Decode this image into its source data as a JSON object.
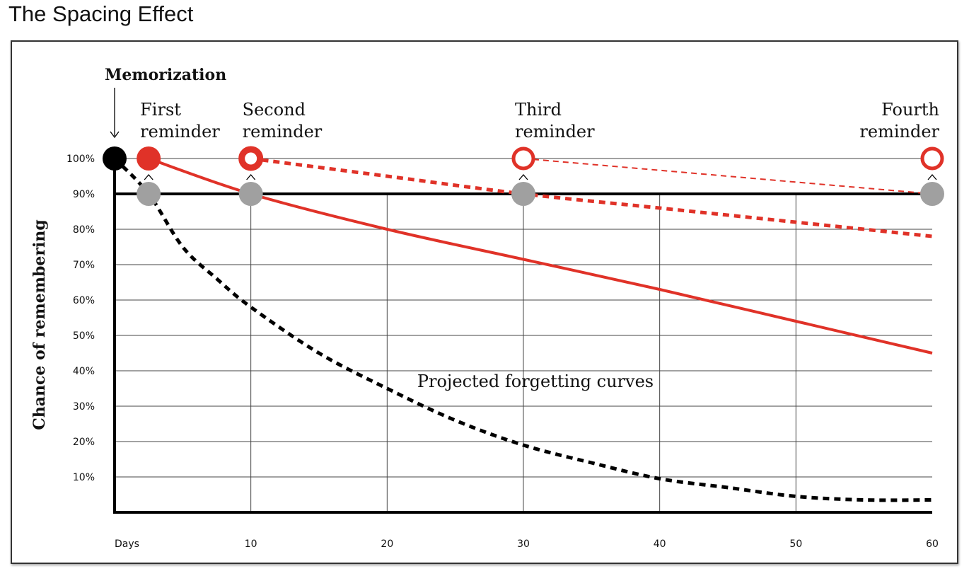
{
  "page": {
    "title": "The Spacing Effect"
  },
  "chart_data": {
    "type": "line",
    "title": "The Spacing Effect",
    "xlabel": "Days",
    "ylabel": "Chance of remembering",
    "xlim": [
      0,
      60
    ],
    "ylim": [
      0,
      100
    ],
    "x_ticks": [
      10,
      20,
      30,
      40,
      50,
      60
    ],
    "x_tick_labels": [
      "10",
      "20",
      "30",
      "40",
      "50",
      "60"
    ],
    "x_origin_label": "Days",
    "y_ticks": [
      10,
      20,
      30,
      40,
      50,
      60,
      70,
      80,
      90,
      100
    ],
    "y_tick_labels": [
      "10%",
      "20%",
      "30%",
      "40%",
      "50%",
      "60%",
      "70%",
      "80%",
      "90%",
      "100%"
    ],
    "grid": true,
    "threshold": {
      "y": 90
    },
    "series": [
      {
        "name": "forgetting after memorization",
        "style": "dashed",
        "color": "#000000",
        "x": [
          0,
          2.5,
          5,
          7.5,
          10,
          15,
          20,
          25,
          30,
          35,
          40,
          45,
          50,
          55,
          60
        ],
        "y": [
          100,
          90,
          75,
          66,
          58,
          45,
          35,
          26,
          19,
          14,
          9.5,
          7,
          4.5,
          3.5,
          3.5
        ]
      },
      {
        "name": "after first reminder",
        "style": "solid",
        "color": "#e03228",
        "x": [
          2.5,
          10,
          20,
          30,
          40,
          50,
          60
        ],
        "y": [
          100,
          90,
          80,
          71.5,
          63,
          54,
          45
        ]
      },
      {
        "name": "after second reminder",
        "style": "dashed",
        "color": "#e03228",
        "x": [
          10,
          20,
          30,
          40,
          50,
          60
        ],
        "y": [
          100,
          95,
          90,
          86,
          82,
          78
        ]
      },
      {
        "name": "after third reminder",
        "style": "thin-dashed",
        "color": "#e03228",
        "x": [
          30,
          60
        ],
        "y": [
          100,
          90
        ]
      }
    ],
    "events": [
      {
        "label": "Memorization",
        "x": 0,
        "y": 100,
        "marker": "filled-black"
      },
      {
        "label_lines": [
          "First",
          "reminder"
        ],
        "x": 2.5,
        "y": 100,
        "marker": "filled-red"
      },
      {
        "label_lines": [
          "Second",
          "reminder"
        ],
        "x": 10,
        "y": 100,
        "marker": "ring-red-thick"
      },
      {
        "label_lines": [
          "Third",
          "reminder"
        ],
        "x": 30,
        "y": 100,
        "marker": "ring-red"
      },
      {
        "label_lines": [
          "Fourth",
          "reminder"
        ],
        "x": 60,
        "y": 100,
        "marker": "ring-red"
      }
    ],
    "threshold_points": [
      {
        "x": 2.5,
        "y": 90
      },
      {
        "x": 10,
        "y": 90
      },
      {
        "x": 30,
        "y": 90
      },
      {
        "x": 60,
        "y": 90
      }
    ],
    "annotations": [
      {
        "text": "Projected forgetting curves",
        "x": 22,
        "y": 37
      }
    ],
    "colors": {
      "red": "#e03228",
      "black": "#000000",
      "grey": "#a0a0a0",
      "grid": "#444444"
    }
  }
}
